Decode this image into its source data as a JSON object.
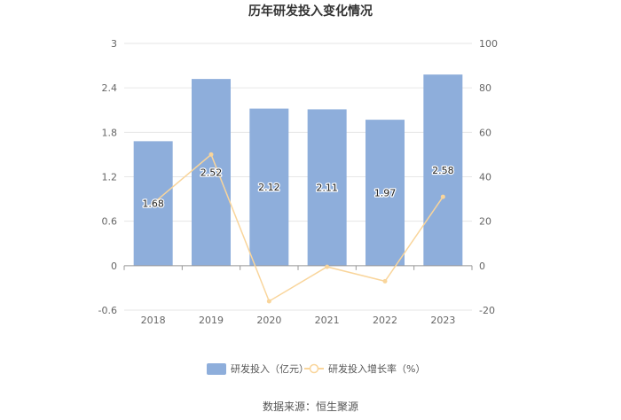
{
  "chart_data": {
    "type": "bar",
    "title": "历年研发投入变化情况",
    "categories": [
      "2018",
      "2019",
      "2020",
      "2021",
      "2022",
      "2023"
    ],
    "series": [
      {
        "name": "研发投入（亿元）",
        "type": "bar",
        "axis": "left",
        "values": [
          1.68,
          2.52,
          2.12,
          2.11,
          1.97,
          2.58
        ],
        "data_labels": [
          "1.68",
          "2.52",
          "2.12",
          "2.11",
          "1.97",
          "2.58"
        ],
        "color": "#8eaedb"
      },
      {
        "name": "研发投入增长率（%）",
        "type": "line",
        "axis": "right",
        "values": [
          28,
          50,
          -16,
          -0.5,
          -7,
          31
        ],
        "color": "#f9d59b"
      }
    ],
    "y_left": {
      "ticks": [
        "3",
        "2.4",
        "1.8",
        "1.2",
        "0.6",
        "0",
        "-0.6"
      ],
      "ylim": [
        -0.6,
        3
      ]
    },
    "y_right": {
      "ticks": [
        "100",
        "80",
        "60",
        "40",
        "20",
        "0",
        "-20"
      ],
      "ylim": [
        -20,
        100
      ]
    },
    "grid": true,
    "legend_position": "bottom"
  },
  "source": "数据来源：恒生聚源"
}
